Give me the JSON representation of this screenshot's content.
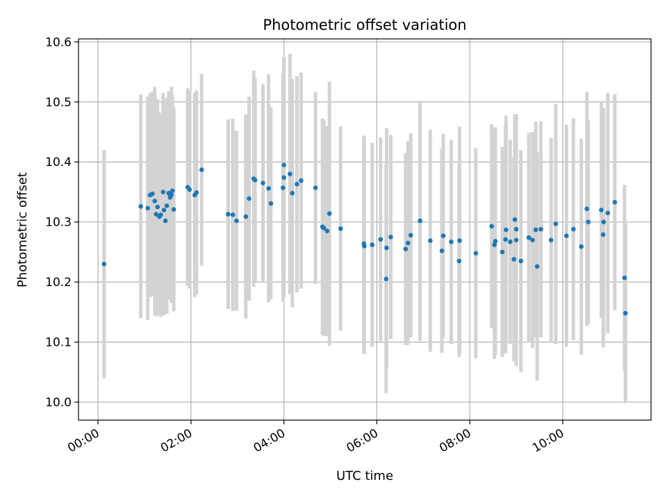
{
  "chart_data": {
    "type": "scatter",
    "title": "Photometric offset variation",
    "xlabel": "UTC time",
    "ylabel": "Photometric offset",
    "x_unit": "hours (UTC)",
    "xlim": [
      -0.42,
      11.9
    ],
    "ylim": [
      9.97,
      10.605
    ],
    "grid": true,
    "x_ticks": [
      {
        "value": 0,
        "label": "00:00"
      },
      {
        "value": 2,
        "label": "02:00"
      },
      {
        "value": 4,
        "label": "04:00"
      },
      {
        "value": 6,
        "label": "06:00"
      },
      {
        "value": 8,
        "label": "08:00"
      },
      {
        "value": 10,
        "label": "10:00"
      }
    ],
    "y_ticks": [
      {
        "value": 10.0,
        "label": "10.0"
      },
      {
        "value": 10.1,
        "label": "10.1"
      },
      {
        "value": 10.2,
        "label": "10.2"
      },
      {
        "value": 10.3,
        "label": "10.3"
      },
      {
        "value": 10.4,
        "label": "10.4"
      },
      {
        "value": 10.5,
        "label": "10.5"
      },
      {
        "value": 10.6,
        "label": "10.6"
      }
    ],
    "colors": {
      "points": "#1f77b4",
      "errorbars": "#d3d3d3",
      "grid": "#b0b0b0"
    },
    "series": [
      {
        "x": [
          0.13,
          0.92,
          1.07,
          1.12,
          1.17,
          1.22,
          1.25,
          1.28,
          1.32,
          1.35,
          1.4,
          1.42,
          1.45,
          1.48,
          1.52,
          1.55,
          1.58,
          1.6,
          1.63,
          1.93,
          1.97,
          2.08,
          2.12,
          2.23,
          2.8,
          2.9,
          2.98,
          3.18,
          3.25,
          3.35,
          3.38,
          3.55,
          3.67,
          3.72,
          3.98,
          4.0,
          4.0,
          4.13,
          4.18,
          4.28,
          4.37,
          4.68,
          4.83,
          4.86,
          4.93,
          4.98,
          5.22,
          5.72,
          5.73,
          5.9,
          6.08,
          6.2,
          6.21,
          6.3,
          6.62,
          6.67,
          6.73,
          6.93,
          7.15,
          7.4,
          7.43,
          7.6,
          7.77,
          7.78,
          8.13,
          8.47,
          8.53,
          8.55,
          8.7,
          8.77,
          8.78,
          8.87,
          8.95,
          8.97,
          9.0,
          9.0,
          9.1,
          9.27,
          9.35,
          9.42,
          9.45,
          9.53,
          9.75,
          9.85,
          10.08,
          10.23,
          10.4,
          10.52,
          10.55,
          10.83,
          10.87,
          10.88,
          10.97,
          11.12,
          11.33,
          11.35
        ],
        "y": [
          10.23,
          10.326,
          10.323,
          10.345,
          10.347,
          10.335,
          10.313,
          10.325,
          10.309,
          10.312,
          10.35,
          10.32,
          10.302,
          10.327,
          10.348,
          10.341,
          10.345,
          10.352,
          10.321,
          10.358,
          10.354,
          10.345,
          10.349,
          10.387,
          10.313,
          10.312,
          10.302,
          10.309,
          10.339,
          10.372,
          10.37,
          10.365,
          10.356,
          10.331,
          10.357,
          10.374,
          10.395,
          10.38,
          10.348,
          10.363,
          10.369,
          10.357,
          10.292,
          10.29,
          10.285,
          10.314,
          10.289,
          10.264,
          10.26,
          10.262,
          10.271,
          10.205,
          10.257,
          10.275,
          10.255,
          10.265,
          10.278,
          10.302,
          10.269,
          10.252,
          10.277,
          10.267,
          10.235,
          10.269,
          10.248,
          10.293,
          10.262,
          10.268,
          10.25,
          10.271,
          10.287,
          10.267,
          10.238,
          10.304,
          10.288,
          10.27,
          10.235,
          10.274,
          10.27,
          10.287,
          10.226,
          10.288,
          10.27,
          10.297,
          10.277,
          10.288,
          10.259,
          10.322,
          10.3,
          10.32,
          10.279,
          10.3,
          10.315,
          10.333,
          10.207,
          10.148
        ],
        "yerr": [
          0.19,
          0.186,
          0.186,
          0.17,
          0.17,
          0.19,
          0.17,
          0.18,
          0.165,
          0.17,
          0.165,
          0.175,
          0.15,
          0.18,
          0.17,
          0.17,
          0.18,
          0.16,
          0.17,
          0.165,
          0.165,
          0.17,
          0.17,
          0.16,
          0.158,
          0.16,
          0.15,
          0.17,
          0.17,
          0.18,
          0.17,
          0.165,
          0.19,
          0.16,
          0.19,
          0.2,
          0.18,
          0.2,
          0.19,
          0.18,
          0.18,
          0.16,
          0.18,
          0.18,
          0.175,
          0.22,
          0.17,
          0.18,
          0.18,
          0.17,
          0.17,
          0.19,
          0.2,
          0.17,
          0.16,
          0.17,
          0.17,
          0.2,
          0.185,
          0.17,
          0.17,
          0.17,
          0.16,
          0.19,
          0.175,
          0.17,
          0.19,
          0.19,
          0.175,
          0.19,
          0.19,
          0.17,
          0.17,
          0.175,
          0.19,
          0.21,
          0.185,
          0.175,
          0.18,
          0.18,
          0.19,
          0.18,
          0.17,
          0.2,
          0.185,
          0.185,
          0.18,
          0.195,
          0.17,
          0.18,
          0.188,
          0.19,
          0.2,
          0.18,
          0.155,
          0.15
        ]
      }
    ]
  }
}
